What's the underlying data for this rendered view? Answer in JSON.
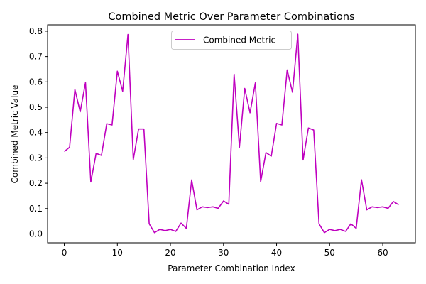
{
  "chart_data": {
    "type": "line",
    "title": "Combined Metric Over Parameter Combinations",
    "xlabel": "Parameter Combination Index",
    "ylabel": "Combined Metric Value",
    "xlim": [
      -3.15,
      66.15
    ],
    "ylim": [
      -0.035,
      0.825
    ],
    "xticks": [
      0,
      10,
      20,
      30,
      40,
      50,
      60
    ],
    "yticks": [
      0.0,
      0.1,
      0.2,
      0.3,
      0.4,
      0.5,
      0.6,
      0.7,
      0.8
    ],
    "ytick_labels": [
      "0.0",
      "0.1",
      "0.2",
      "0.3",
      "0.4",
      "0.5",
      "0.6",
      "0.7",
      "0.8"
    ],
    "grid": false,
    "legend_position": "upper center",
    "series": [
      {
        "name": "Combined Metric",
        "color": "#bf00bf",
        "x": [
          0,
          1,
          2,
          3,
          4,
          5,
          6,
          7,
          8,
          9,
          10,
          11,
          12,
          13,
          14,
          15,
          16,
          17,
          18,
          19,
          20,
          21,
          22,
          23,
          24,
          25,
          26,
          27,
          28,
          29,
          30,
          31,
          32,
          33,
          34,
          35,
          36,
          37,
          38,
          39,
          40,
          41,
          42,
          43,
          44,
          45,
          46,
          47,
          48,
          49,
          50,
          51,
          52,
          53,
          54,
          55,
          56,
          57,
          58,
          59,
          60,
          61,
          62,
          63
        ],
        "values": [
          0.325,
          0.342,
          0.57,
          0.482,
          0.597,
          0.205,
          0.318,
          0.31,
          0.435,
          0.43,
          0.642,
          0.563,
          0.787,
          0.293,
          0.414,
          0.414,
          0.04,
          0.005,
          0.018,
          0.013,
          0.018,
          0.01,
          0.043,
          0.022,
          0.213,
          0.095,
          0.107,
          0.104,
          0.107,
          0.101,
          0.13,
          0.117,
          0.63,
          0.342,
          0.574,
          0.478,
          0.596,
          0.206,
          0.321,
          0.307,
          0.436,
          0.43,
          0.647,
          0.559,
          0.788,
          0.292,
          0.418,
          0.41,
          0.04,
          0.005,
          0.018,
          0.013,
          0.018,
          0.01,
          0.04,
          0.022,
          0.214,
          0.095,
          0.107,
          0.104,
          0.107,
          0.101,
          0.128,
          0.115
        ]
      }
    ]
  }
}
